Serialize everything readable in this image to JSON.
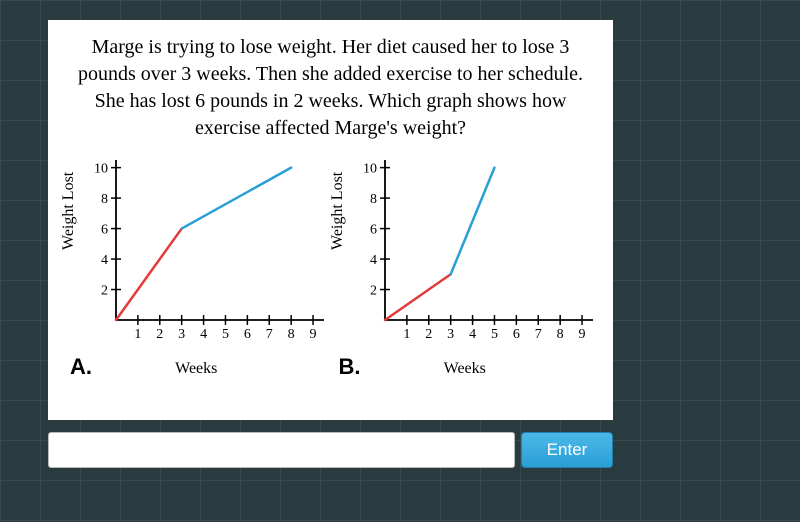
{
  "background": {
    "color": "#2a3b3f",
    "grid_color": "#384a4e",
    "grid_size": 40
  },
  "card": {
    "background": "#ffffff"
  },
  "question": {
    "text": "Marge is trying to lose weight. Her diet caused her to lose 3 pounds over 3 weeks. Then she added exercise to her schedule. She has lost 6 pounds in 2 weeks. Which graph shows how exercise affected Marge's weight?",
    "fontsize": 20,
    "color": "#000000"
  },
  "chartA": {
    "type": "line",
    "option_label": "A.",
    "xlabel": "Weeks",
    "ylabel": "Weight Lost",
    "xlim": [
      0,
      9.5
    ],
    "ylim": [
      0,
      10.5
    ],
    "xtick_step": 1,
    "ytick_step": 2,
    "xticks": [
      1,
      2,
      3,
      4,
      5,
      6,
      7,
      8,
      9
    ],
    "yticks": [
      2,
      4,
      6,
      8,
      10
    ],
    "axis_color": "#000000",
    "label_fontsize": 16,
    "tick_fontsize": 14,
    "series": [
      {
        "color": "#e23b3b",
        "width": 2.5,
        "points": [
          [
            0,
            0
          ],
          [
            3,
            6
          ]
        ]
      },
      {
        "color": "#2a9fd6",
        "width": 2.5,
        "points": [
          [
            3,
            6
          ],
          [
            8,
            10
          ]
        ]
      }
    ]
  },
  "chartB": {
    "type": "line",
    "option_label": "B.",
    "xlabel": "Weeks",
    "ylabel": "Weight Lost",
    "xlim": [
      0,
      9.5
    ],
    "ylim": [
      0,
      10.5
    ],
    "xtick_step": 1,
    "ytick_step": 2,
    "xticks": [
      1,
      2,
      3,
      4,
      5,
      6,
      7,
      8,
      9
    ],
    "yticks": [
      2,
      4,
      6,
      8,
      10
    ],
    "axis_color": "#000000",
    "label_fontsize": 16,
    "tick_fontsize": 14,
    "series": [
      {
        "color": "#e23b3b",
        "width": 2.5,
        "points": [
          [
            0,
            0
          ],
          [
            3,
            3
          ]
        ]
      },
      {
        "color": "#2a9fd6",
        "width": 2.5,
        "points": [
          [
            3,
            3
          ],
          [
            5,
            10
          ]
        ]
      }
    ]
  },
  "answer": {
    "input_value": "",
    "placeholder": "",
    "button_label": "Enter",
    "button_bg": "#2a9fd6",
    "button_text_color": "#ffffff"
  }
}
